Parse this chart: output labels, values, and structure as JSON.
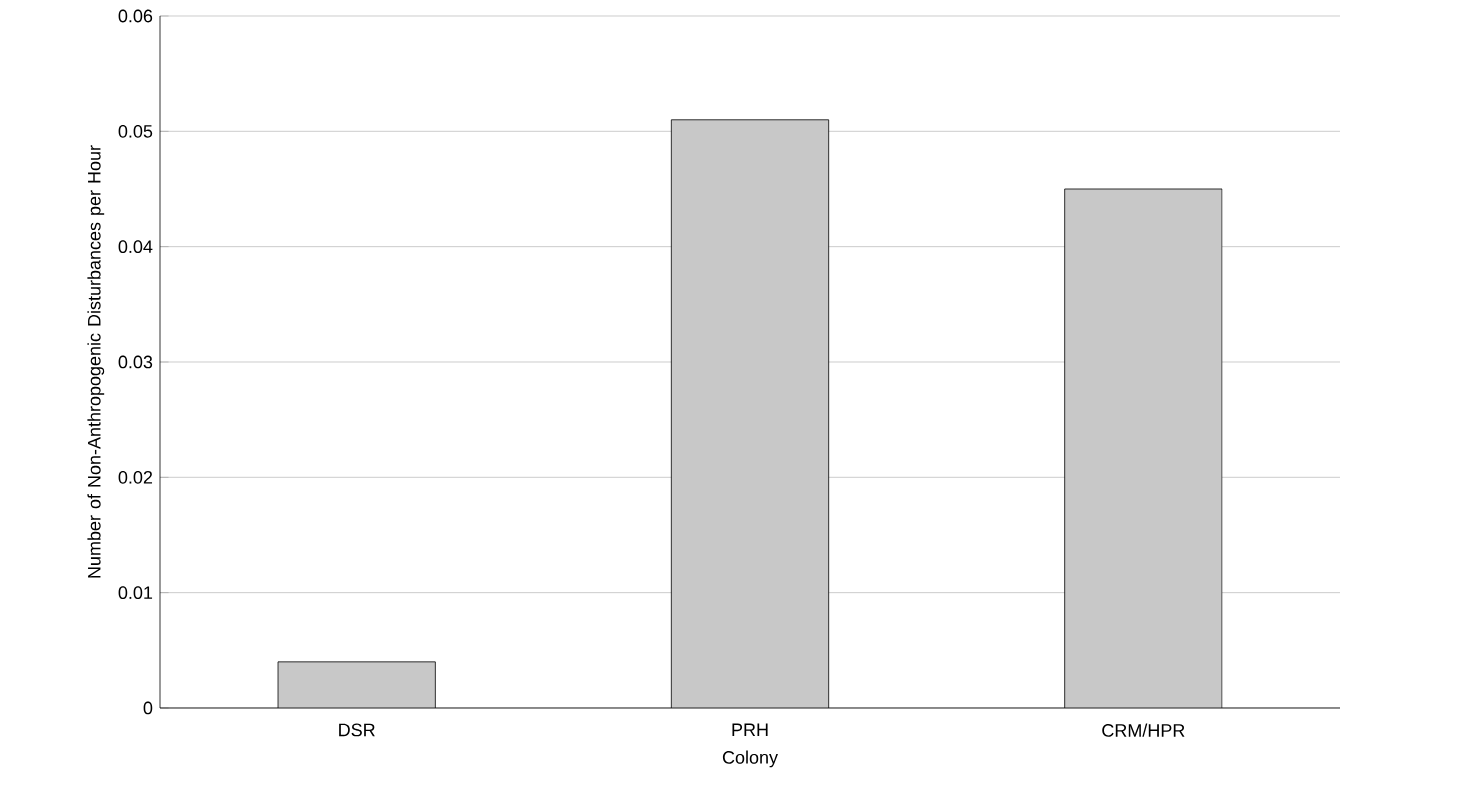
{
  "chart_data": {
    "type": "bar",
    "xlabel": "Colony",
    "ylabel": "Number of Non-Anthropogenic Disturbances per Hour",
    "categories": [
      "DSR",
      "PRH",
      "CRM/HPR"
    ],
    "values": [
      0.004,
      0.051,
      0.045
    ],
    "color": "#c8c8c8",
    "ylim": [
      0,
      0.06
    ],
    "yticks": [
      0,
      0.01,
      0.02,
      0.03,
      0.04,
      0.05,
      0.06
    ],
    "grid": "y"
  }
}
